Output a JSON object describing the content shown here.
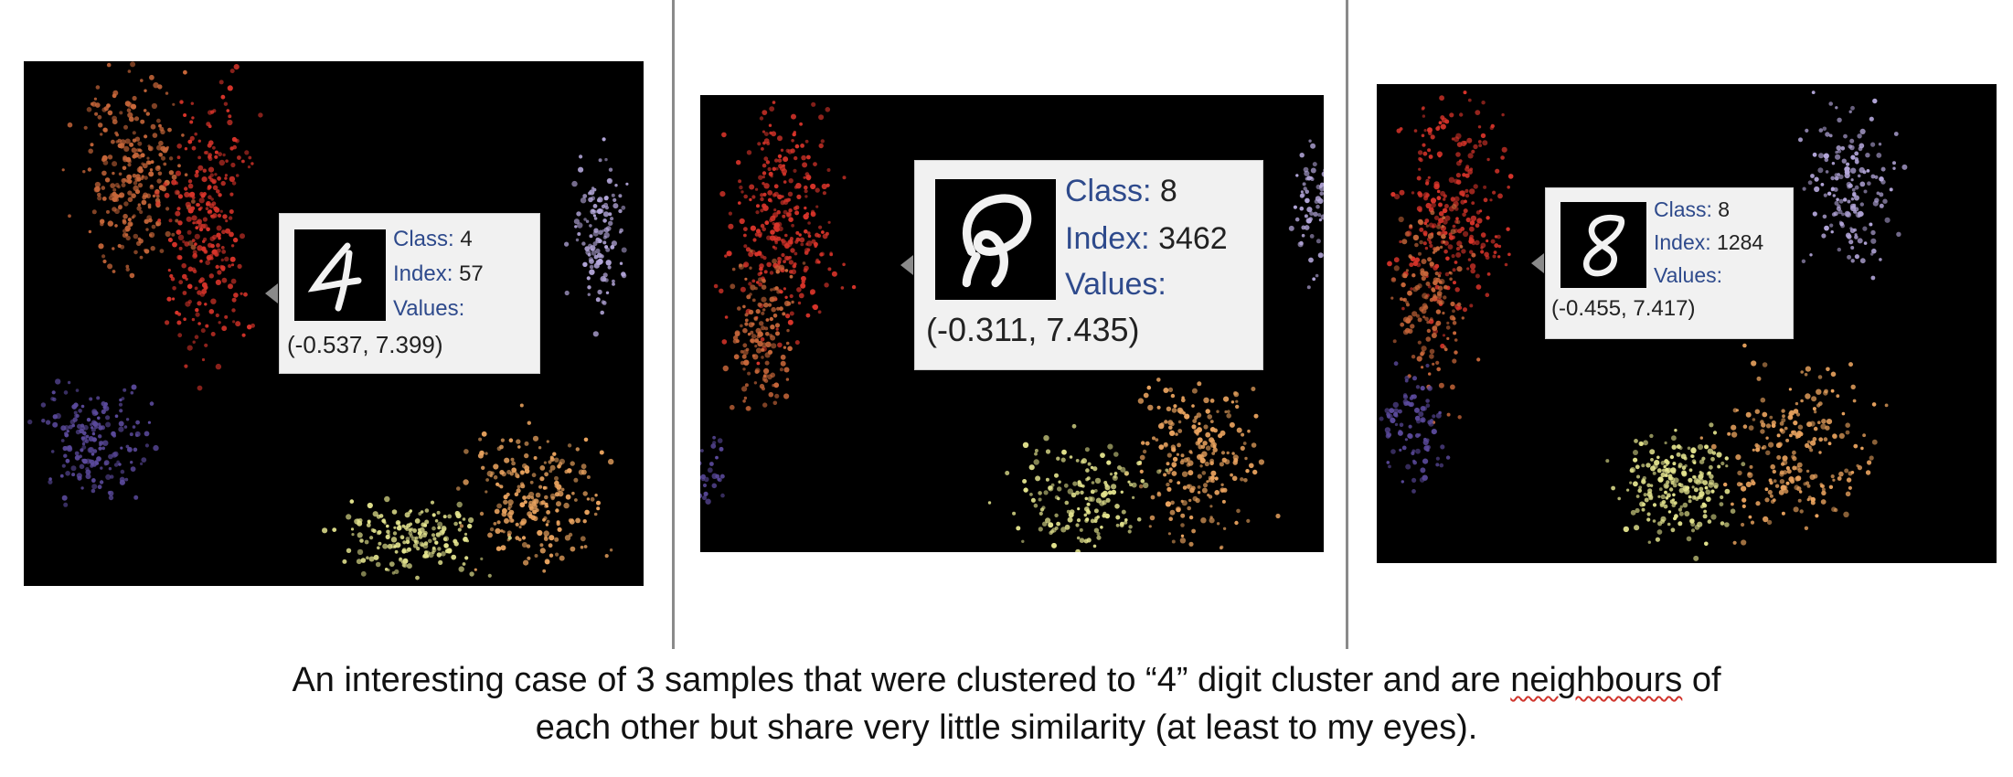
{
  "panels": [
    {
      "class_label": "Class:",
      "class_value": "4",
      "index_label": "Index:",
      "index_value": "57",
      "values_label": "Values:",
      "coords": "(-0.537, 7.399)"
    },
    {
      "class_label": "Class:",
      "class_value": "8",
      "index_label": "Index:",
      "index_value": "3462",
      "values_label": "Values:",
      "coords": "(-0.311, 7.435)"
    },
    {
      "class_label": "Class:",
      "class_value": "8",
      "index_label": "Index:",
      "index_value": "1284",
      "values_label": "Values:",
      "coords": "(-0.455, 7.417)"
    }
  ],
  "caption": {
    "line1_start": "An interesting case of 3 samples that were clustered to “4” digit cluster and are ",
    "line1_flagged": "neighbours",
    "line1_end": " of",
    "line2": "each other but share very little similarity (at least to my eyes)."
  },
  "colors": {
    "red": "#d8342a",
    "brown_orange": "#c8673a",
    "purple": "#5b4a9c",
    "lavender": "#b3a6d9",
    "peach": "#e9a35f",
    "pale_yellow": "#e4e48f",
    "label_blue": "#2e4a8c",
    "tooltip_bg": "#f1f1f1"
  }
}
